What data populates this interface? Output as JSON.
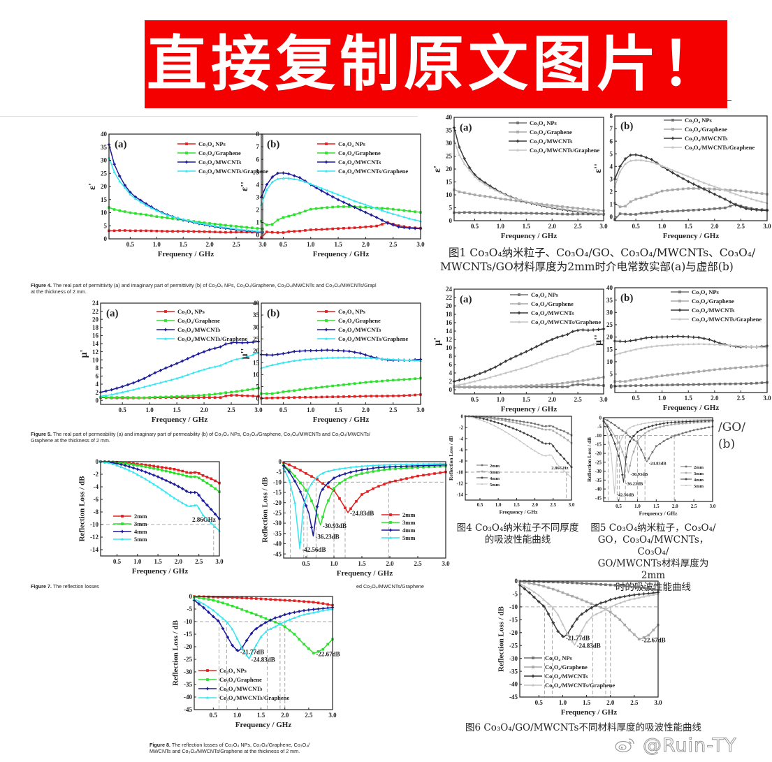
{
  "banner": {
    "text": "直接复制原文图片！",
    "bg_color": "#f40000",
    "text_color": "#ffffff"
  },
  "watermark": {
    "text": "@Ruin-TY",
    "icon": "weibo-icon"
  },
  "colors": {
    "orig": [
      "#e02020",
      "#2ee02e",
      "#1a1a9a",
      "#33e6f0"
    ],
    "copy": [
      "#707070",
      "#a8a8a8",
      "#3a3a3a",
      "#c4c4c4"
    ]
  },
  "captions": {
    "fig4": {
      "label": "Figure 4.",
      "text": " The real part of permittivity (a) and imaginary part of permittivity (b) of Co₃O₄ NPs, Co₃O₄/Graphene, Co₃O₄/MWCNTs and Co₃O₄/MWCNTs/Grapl",
      "line2": "at the thickness of 2 mm."
    },
    "fig5": {
      "label": "Figure 5.",
      "text": " The real part of permeability (a) and imaginary part of permeability (b) of Co₃O₄ NPs, Co₃O₄/Graphene, Co₃O₄/MWCNTs and Co₃O₄/MWCNTs/",
      "line2": "Graphene at the thickness of 2 mm."
    },
    "fig7": {
      "label": "Figure 7.",
      "text": " The reflection losses"
    },
    "fig7_tail": {
      "text": "ed Co₃O₄/MWCNTs/Graphene"
    },
    "fig8": {
      "label": "Figure 8.",
      "text": " The reflection losses of Co₃O₄ NPs, Co₃O₄/Graphene, Co₃O₄/",
      "line2": "MWCNTs and Co₃O₄/MWCNTs/Graphene at the thickness of 2 mm."
    },
    "cn1": {
      "line1": "图1 Co₃O₄纳米粒子、Co₃O₄/GO、Co₃O₄/MWCNTs、Co₃O₄/",
      "line2": "MWCNTs/GO材料厚度为2mm时介电常数实部(a)与虚部(b)"
    },
    "cn4": {
      "line1": "图4 Co₃O₄纳米粒子不同厚度",
      "line2": "的吸波性能曲线"
    },
    "cn5": {
      "line1": "图5 Co₃O₄纳米粒子，Co₃O₄/",
      "line2": "GO，Co₃O₄/MWCNTs，Co₃O₄/",
      "line3": "GO/MWCNTs材料厚度为2mm",
      "line4": "时的吸波性能曲线"
    },
    "cn6": {
      "line1": "图6 Co₃O₄/GO/MWCNTs不同材料厚度的吸波性能曲线"
    },
    "cn_overlap": {
      "line1": "/GO/",
      "line2": "(b)"
    }
  },
  "chart_data": [
    {
      "id": "eps_real",
      "type": "line",
      "panel": "(a)",
      "title": "",
      "xlabel": "Frequency / GHz",
      "ylabel": "ε'",
      "xlim": [
        0.1,
        3.0
      ],
      "ylim": [
        0,
        40
      ],
      "xticks": [
        0.5,
        1.0,
        1.5,
        2.0,
        2.5,
        3.0
      ],
      "yticks": [
        0,
        5,
        10,
        15,
        20,
        25,
        30,
        35,
        40
      ],
      "legend_position": "upper-right",
      "x": [
        0.1,
        0.2,
        0.3,
        0.4,
        0.5,
        0.6,
        0.8,
        1.0,
        1.2,
        1.5,
        1.8,
        2.0,
        2.3,
        2.6,
        3.0
      ],
      "series": [
        {
          "name": "Co₃O₄ NPs",
          "values": [
            3.1,
            3.1,
            3.2,
            3.2,
            3.1,
            3.1,
            3.1,
            3.0,
            2.9,
            2.9,
            2.8,
            2.7,
            2.5,
            2.6,
            2.5
          ]
        },
        {
          "name": "Co₃O₄/Graphene",
          "values": [
            12,
            11.2,
            10.8,
            10.4,
            10.0,
            9.7,
            9.2,
            8.5,
            8.0,
            7.2,
            6.4,
            5.9,
            5.2,
            4.6,
            3.8
          ]
        },
        {
          "name": "Co₃O₄/MWCNTs",
          "values": [
            36,
            28.5,
            24,
            20.5,
            17.8,
            16,
            13.4,
            11.0,
            9.2,
            7.2,
            5.8,
            5.0,
            4.0,
            3.3,
            2.5
          ]
        },
        {
          "name": "Co₃O₄/MWCNTs/Graphene",
          "values": [
            31,
            25.5,
            22,
            19.5,
            17,
            15.3,
            12.8,
            10.8,
            9.0,
            7.4,
            6.0,
            5.2,
            4.3,
            3.5,
            2.7
          ]
        }
      ]
    },
    {
      "id": "eps_imag",
      "type": "line",
      "panel": "(b)",
      "title": "",
      "xlabel": "Frequency / GHz",
      "ylabel": "ε''",
      "xlim": [
        0.1,
        3.0
      ],
      "ylim": [
        -0.3,
        8
      ],
      "xticks": [
        0.5,
        1.0,
        1.5,
        2.0,
        2.5,
        3.0
      ],
      "yticks": [
        0,
        1,
        2,
        3,
        4,
        5,
        6,
        7,
        8
      ],
      "legend_position": "upper-right",
      "x": [
        0.1,
        0.2,
        0.3,
        0.4,
        0.5,
        0.6,
        0.8,
        1.0,
        1.2,
        1.5,
        1.8,
        2.0,
        2.2,
        2.4,
        2.6,
        2.8,
        3.0
      ],
      "series": [
        {
          "name": "Co₃O₄ NPs",
          "values": [
            -0.2,
            0.25,
            0.22,
            0.2,
            0.2,
            0.28,
            0.32,
            0.42,
            0.45,
            0.52,
            0.58,
            0.65,
            0.72,
            1.0,
            0.75,
            0.6,
            0.55
          ]
        },
        {
          "name": "Co₃O₄/Graphene",
          "values": [
            1.1,
            0.8,
            0.85,
            1.2,
            1.4,
            1.5,
            1.75,
            2.05,
            2.15,
            2.25,
            2.25,
            2.2,
            2.15,
            2.1,
            2.0,
            1.9,
            1.8
          ]
        },
        {
          "name": "Co₃O₄/MWCNTs",
          "values": [
            3.0,
            4.0,
            4.6,
            4.9,
            4.92,
            4.85,
            4.55,
            4.0,
            3.5,
            2.8,
            2.2,
            1.8,
            1.4,
            0.95,
            0.65,
            0.55,
            0.5
          ]
        },
        {
          "name": "Co₃O₄/MWCNTs/Graphene",
          "values": [
            2.4,
            3.6,
            4.2,
            4.45,
            4.5,
            4.5,
            4.35,
            4.05,
            3.7,
            3.2,
            2.7,
            2.4,
            2.1,
            1.8,
            1.55,
            1.3,
            1.1
          ]
        }
      ]
    },
    {
      "id": "mu_real",
      "type": "line",
      "panel": "(a)",
      "title": "",
      "xlabel": "Frequency / GHz",
      "ylabel": "μ'",
      "xlim": [
        0.1,
        3.0
      ],
      "ylim": [
        -1,
        24
      ],
      "xticks": [
        0.5,
        1.0,
        1.5,
        2.0,
        2.5,
        3.0
      ],
      "yticks": [
        0,
        2,
        4,
        6,
        8,
        10,
        12,
        14,
        16,
        18,
        20,
        22,
        24
      ],
      "legend_position": "upper-right",
      "x": [
        0.1,
        0.3,
        0.5,
        0.7,
        0.9,
        1.1,
        1.3,
        1.5,
        1.7,
        1.9,
        2.1,
        2.3,
        2.4,
        2.55,
        2.7,
        2.85,
        3.0
      ],
      "series": [
        {
          "name": "Co₃O₄ NPs",
          "values": [
            0.7,
            0.6,
            0.6,
            0.6,
            0.6,
            0.65,
            0.7,
            0.7,
            0.7,
            0.7,
            0.7,
            0.7,
            1.1,
            1.3,
            1.15,
            1.1,
            1.0
          ]
        },
        {
          "name": "Co₃O₄/Graphene",
          "values": [
            0.8,
            0.7,
            0.75,
            0.7,
            0.65,
            0.8,
            0.85,
            0.95,
            1.05,
            1.2,
            1.4,
            1.7,
            1.9,
            2.1,
            2.4,
            2.7,
            3.0
          ]
        },
        {
          "name": "Co₃O₄/MWCNTs",
          "values": [
            2.0,
            2.6,
            3.4,
            4.3,
            5.4,
            6.8,
            8.0,
            9.1,
            10.3,
            11.5,
            12.5,
            13.2,
            13.9,
            14.3,
            14.2,
            14.3,
            14.5
          ]
        },
        {
          "name": "Co₃O₄/MWCNTs/Graphene",
          "values": [
            1.0,
            1.4,
            2.0,
            2.6,
            3.3,
            4.0,
            4.7,
            5.4,
            6.3,
            7.2,
            8.0,
            8.6,
            9.2,
            10.0,
            10.4,
            11.0,
            11.8
          ]
        }
      ]
    },
    {
      "id": "mu_imag",
      "type": "line",
      "panel": "(b)",
      "title": "",
      "xlabel": "Frequency / GHz",
      "ylabel": "μ''",
      "xlim": [
        0.1,
        3.0
      ],
      "ylim": [
        -2.5,
        40
      ],
      "xticks": [
        0.5,
        1.0,
        1.5,
        2.0,
        2.5,
        3.0
      ],
      "yticks": [
        0,
        5,
        10,
        15,
        20,
        25,
        30,
        35,
        40
      ],
      "legend_position": "upper-right",
      "x": [
        0.1,
        0.3,
        0.5,
        0.7,
        0.9,
        1.1,
        1.3,
        1.5,
        1.7,
        1.9,
        2.1,
        2.3,
        2.45,
        2.6,
        2.8,
        3.0
      ],
      "series": [
        {
          "name": "Co₃O₄ NPs",
          "values": [
            0.1,
            0.2,
            0.3,
            0.4,
            0.5,
            0.55,
            0.65,
            0.7,
            0.8,
            0.9,
            1.0,
            1.0,
            1.05,
            1.1,
            1.3,
            1.6
          ]
        },
        {
          "name": "Co₃O₄/Graphene",
          "values": [
            2.0,
            2.0,
            2.8,
            3.3,
            4.0,
            4.5,
            5.0,
            5.5,
            6.0,
            6.5,
            7.0,
            7.3,
            7.6,
            7.8,
            8.1,
            8.5
          ]
        },
        {
          "name": "Co₃O₄/MWCNTs",
          "values": [
            18.4,
            18.2,
            18.8,
            19.7,
            20.0,
            20.1,
            20.3,
            20.1,
            19.8,
            19.0,
            17.5,
            16.5,
            16.0,
            16.1,
            16.0,
            16.4
          ]
        },
        {
          "name": "Co₃O₄/MWCNTs/Graphene",
          "values": [
            12.8,
            14.0,
            15.0,
            15.8,
            16.4,
            16.7,
            17.0,
            17.1,
            17.2,
            17.1,
            16.9,
            16.6,
            16.4,
            16.2,
            16.0,
            15.8
          ]
        }
      ]
    },
    {
      "id": "rl_co3o4_thickness",
      "type": "line",
      "panel": "",
      "title": "",
      "xlabel": "Frequency / GHz",
      "ylabel": "Reflection Loss / dB",
      "xlim": [
        0.1,
        3.0
      ],
      "ylim": [
        -15,
        0
      ],
      "xticks": [
        0.5,
        1.0,
        1.5,
        2.0,
        2.5,
        3.0
      ],
      "yticks": [
        0,
        -2,
        -4,
        -6,
        -8,
        -10,
        -12,
        -14
      ],
      "legend_position": "lower-left",
      "annotations": [
        {
          "text": "2.86GHz",
          "x": 2.86,
          "y": -10
        }
      ],
      "ref_lines": {
        "h": [
          -10
        ],
        "v": [
          2.86
        ]
      },
      "x": [
        0.1,
        0.3,
        0.5,
        0.7,
        0.9,
        1.1,
        1.3,
        1.5,
        1.7,
        1.9,
        2.1,
        2.25,
        2.45,
        2.6,
        2.8,
        3.0
      ],
      "series": [
        {
          "name": "2mm",
          "values": [
            0,
            -0.02,
            -0.08,
            -0.18,
            -0.3,
            -0.45,
            -0.6,
            -0.8,
            -1.0,
            -1.2,
            -1.5,
            -1.8,
            -1.7,
            -2.2,
            -2.7,
            -3.4
          ]
        },
        {
          "name": "3mm",
          "values": [
            0,
            -0.05,
            -0.15,
            -0.3,
            -0.5,
            -0.7,
            -0.95,
            -1.2,
            -1.5,
            -1.8,
            -2.1,
            -2.4,
            -2.4,
            -3.0,
            -3.8,
            -4.8
          ]
        },
        {
          "name": "4mm",
          "values": [
            0,
            -0.1,
            -0.3,
            -0.6,
            -1.0,
            -1.4,
            -1.9,
            -2.4,
            -3.0,
            -3.6,
            -4.3,
            -4.9,
            -4.9,
            -6.2,
            -7.6,
            -9.1
          ]
        },
        {
          "name": "5mm",
          "values": [
            0,
            -0.2,
            -0.6,
            -1.1,
            -1.7,
            -2.4,
            -3.2,
            -4.0,
            -4.9,
            -5.8,
            -6.6,
            -7.1,
            -6.9,
            -8.5,
            -9.8,
            -11.0
          ]
        }
      ]
    },
    {
      "id": "rl_thickness_peaks",
      "type": "line",
      "panel": "",
      "title": "",
      "xlabel": "Frequency / GHz",
      "ylabel": "Reflection Loss / dB",
      "xlim": [
        0.1,
        3.0
      ],
      "ylim": [
        -47,
        0
      ],
      "xticks": [
        0.5,
        1.0,
        1.5,
        2.0,
        2.5,
        3.0
      ],
      "yticks": [
        0,
        -5,
        -10,
        -15,
        -20,
        -25,
        -30,
        -35,
        -40,
        -45
      ],
      "legend_position": "lower-right",
      "annotations": [
        {
          "text": "-24.83dB",
          "x": 1.25,
          "y": -24.83
        },
        {
          "text": "-30.93dB",
          "x": 0.76,
          "y": -30.93
        },
        {
          "text": "-36.23dB",
          "x": 0.63,
          "y": -36.23
        },
        {
          "text": "-42.56dB",
          "x": 0.39,
          "y": -42.56
        }
      ],
      "ref_lines": {
        "h": [
          -10
        ],
        "v": [
          0.22,
          0.46,
          0.52,
          0.68,
          1.0,
          1.2,
          1.98
        ]
      },
      "x": [
        0.1,
        0.2,
        0.3,
        0.39,
        0.45,
        0.55,
        0.63,
        0.7,
        0.76,
        0.85,
        1.0,
        1.1,
        1.25,
        1.35,
        1.5,
        1.75,
        2.0,
        2.5,
        3.0
      ],
      "series": [
        {
          "name": "2mm",
          "values": [
            -0.5,
            -1.5,
            -2.8,
            -4.0,
            -5.0,
            -6.5,
            -7.6,
            -8.6,
            -10.0,
            -11.5,
            -14.0,
            -18.0,
            -24.83,
            -21.0,
            -16.0,
            -12.5,
            -10.0,
            -7.0,
            -5.0
          ]
        },
        {
          "name": "3mm",
          "values": [
            -1.5,
            -4.0,
            -7.0,
            -10.0,
            -12.0,
            -16.0,
            -21.0,
            -26.0,
            -30.93,
            -22.0,
            -13.0,
            -10.5,
            -8.0,
            -7.0,
            -5.8,
            -4.5,
            -3.6,
            -2.8,
            -2.2
          ]
        },
        {
          "name": "4mm",
          "values": [
            -2.0,
            -5.0,
            -9.5,
            -14.0,
            -18.0,
            -25.0,
            -36.23,
            -22.0,
            -15.0,
            -11.5,
            -8.0,
            -6.8,
            -5.5,
            -4.8,
            -4.0,
            -3.0,
            -2.5,
            -2.0,
            -1.6
          ]
        },
        {
          "name": "5mm",
          "values": [
            -3.0,
            -9.0,
            -20.0,
            -42.56,
            -22.0,
            -13.0,
            -9.5,
            -7.5,
            -6.2,
            -5.0,
            -4.0,
            -3.5,
            -3.0,
            -2.6,
            -2.2,
            -1.8,
            -1.5,
            -1.2,
            -1.0
          ]
        }
      ]
    },
    {
      "id": "rl_materials_2mm",
      "type": "line",
      "panel": "",
      "title": "",
      "xlabel": "Frequency / GHz",
      "ylabel": "Reflection Loss / dB",
      "xlim": [
        0.1,
        3.0
      ],
      "ylim": [
        -45,
        0
      ],
      "xticks": [
        0.5,
        1.0,
        1.5,
        2.0,
        2.5,
        3.0
      ],
      "yticks": [
        0,
        -5,
        -10,
        -15,
        -20,
        -25,
        -30,
        -35,
        -40,
        -45
      ],
      "legend_position": "lower-left",
      "annotations": [
        {
          "text": "-21.77dB",
          "x": 1.02,
          "y": -21.77
        },
        {
          "text": "-24.83dB",
          "x": 1.25,
          "y": -24.83
        },
        {
          "text": "-22.67dB",
          "x": 2.61,
          "y": -22.67
        }
      ],
      "ref_lines": {
        "h": [
          -10
        ],
        "v": [
          0.62,
          0.78,
          1.63,
          1.9,
          2.0
        ]
      },
      "x": [
        0.1,
        0.3,
        0.5,
        0.62,
        0.78,
        0.9,
        1.02,
        1.1,
        1.25,
        1.35,
        1.5,
        1.63,
        1.8,
        1.9,
        2.0,
        2.2,
        2.4,
        2.61,
        2.8,
        3.0
      ],
      "series": [
        {
          "name": "Co₃O₄ NPs",
          "values": [
            0,
            -0.1,
            -0.2,
            -0.3,
            -0.35,
            -0.4,
            -0.5,
            -0.6,
            -0.7,
            -0.8,
            -0.95,
            -1.1,
            -1.3,
            -1.4,
            -1.5,
            -1.7,
            -2.0,
            -2.3,
            -2.8,
            -3.5
          ]
        },
        {
          "name": "Co₃O₄/Graphene",
          "values": [
            -0.2,
            -0.8,
            -1.5,
            -2.1,
            -3.0,
            -3.8,
            -4.6,
            -5.2,
            -6.2,
            -6.9,
            -8.0,
            -9.0,
            -10.2,
            -11.0,
            -12.0,
            -15.0,
            -19.0,
            -22.67,
            -21.0,
            -17.0
          ]
        },
        {
          "name": "Co₃O₄/MWCNTs",
          "values": [
            -1.5,
            -4.5,
            -8.0,
            -10.0,
            -15.5,
            -19.5,
            -21.77,
            -20.5,
            -16.0,
            -13.5,
            -11.5,
            -10.0,
            -8.5,
            -8.0,
            -7.2,
            -6.3,
            -5.6,
            -5.1,
            -4.8,
            -4.4
          ]
        },
        {
          "name": "Co₃O₄/MWCNTs/Graphene",
          "values": [
            -1.0,
            -3.0,
            -5.5,
            -7.5,
            -10.0,
            -13.0,
            -17.5,
            -20.5,
            -24.83,
            -21.0,
            -16.0,
            -13.5,
            -12.0,
            -11.0,
            -10.0,
            -8.5,
            -7.2,
            -6.4,
            -5.6,
            -5.0
          ]
        }
      ]
    }
  ]
}
